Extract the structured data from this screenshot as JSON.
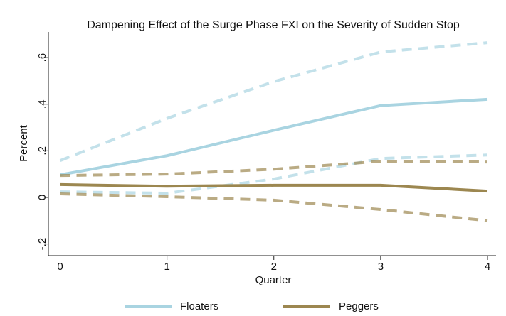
{
  "chart_data": {
    "type": "line",
    "title": "Dampening Effect of the Surge Phase FXI on the Severity of Sudden Stop",
    "x_label": "Quarter",
    "y_label": "Percent",
    "x": [
      0,
      1,
      2,
      3,
      4
    ],
    "series": [
      {
        "name": "Floaters",
        "color": "#a9d4e1",
        "values": [
          0.097,
          0.179,
          0.288,
          0.394,
          0.421
        ],
        "upper": [
          0.158,
          0.339,
          0.497,
          0.624,
          0.664
        ],
        "lower": [
          0.024,
          0.018,
          0.079,
          0.167,
          0.182
        ]
      },
      {
        "name": "Peggers",
        "color": "#9c8750",
        "values": [
          0.055,
          0.048,
          0.052,
          0.052,
          0.027
        ],
        "upper": [
          0.094,
          0.1,
          0.121,
          0.155,
          0.152
        ],
        "lower": [
          0.015,
          0.003,
          -0.012,
          -0.052,
          -0.1
        ]
      }
    ],
    "xlim": [
      -0.11,
      4.08
    ],
    "xticks": [
      0,
      1,
      2,
      3,
      4
    ],
    "ylim": [
      -0.25,
      0.71
    ],
    "yticks": [
      {
        "value": -0.2,
        "label": "-.2"
      },
      0,
      {
        "value": 0.2,
        "label": ".2"
      },
      {
        "value": 0.4,
        "label": ".4"
      },
      {
        "value": 0.6,
        "label": ".6"
      }
    ],
    "legend": "bottom"
  }
}
